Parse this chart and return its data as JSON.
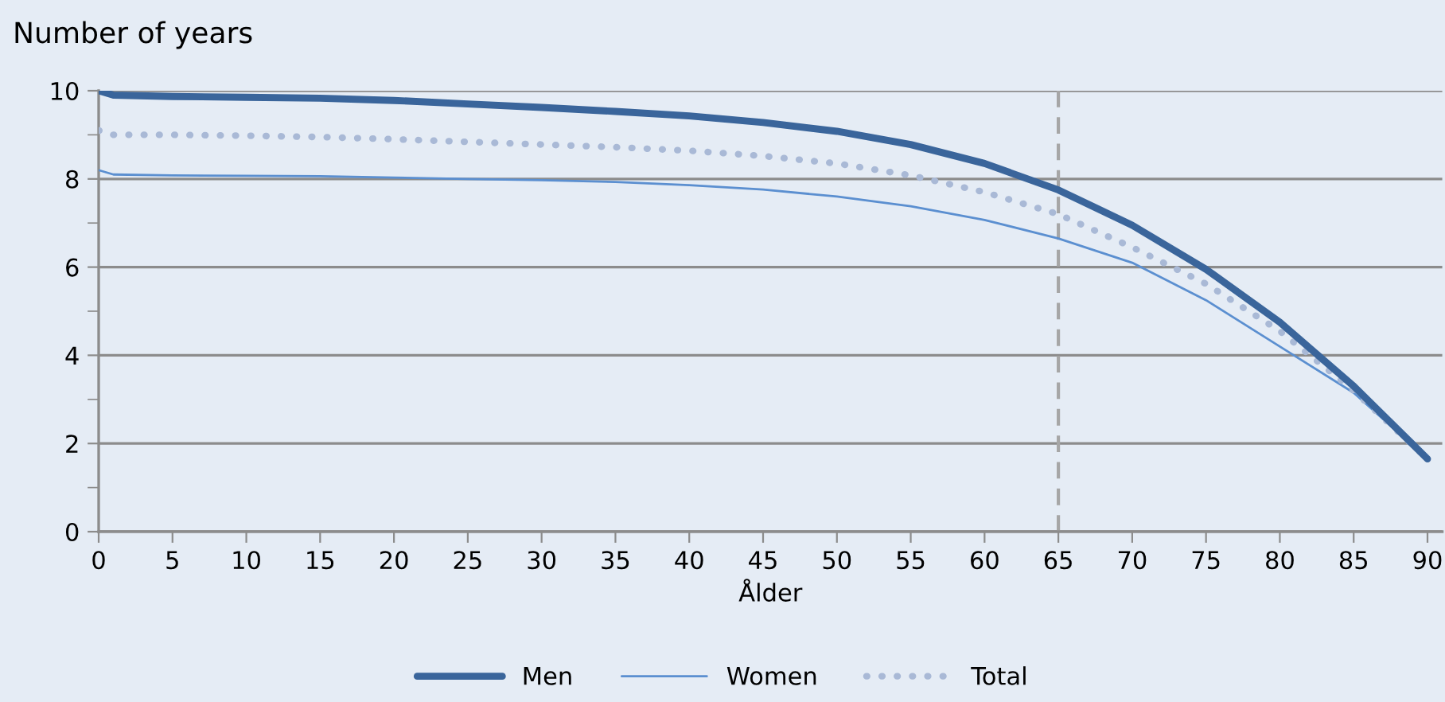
{
  "chart_data": {
    "type": "line",
    "ylabel": "Number of years",
    "xlabel": "Ålder",
    "x": [
      0,
      1,
      5,
      10,
      15,
      20,
      25,
      30,
      35,
      40,
      45,
      50,
      55,
      60,
      65,
      70,
      75,
      80,
      85,
      90
    ],
    "series": [
      {
        "name": "Men",
        "color": "#3a659b",
        "line_style": "solid",
        "values": [
          10.0,
          9.9,
          9.87,
          9.85,
          9.83,
          9.78,
          9.7,
          9.62,
          9.53,
          9.43,
          9.28,
          9.08,
          8.78,
          8.35,
          7.75,
          6.95,
          5.95,
          4.75,
          3.3,
          1.65
        ]
      },
      {
        "name": "Women",
        "color": "#5b8fd0",
        "line_style": "solid",
        "values": [
          8.2,
          8.1,
          8.08,
          8.07,
          8.06,
          8.03,
          8.0,
          7.97,
          7.93,
          7.86,
          7.76,
          7.6,
          7.38,
          7.07,
          6.65,
          6.1,
          5.25,
          4.2,
          3.15,
          1.65
        ]
      },
      {
        "name": "Total",
        "color": "#a9b9d6",
        "line_style": "dotted",
        "values": [
          9.1,
          9.0,
          9.0,
          8.98,
          8.95,
          8.9,
          8.84,
          8.78,
          8.72,
          8.64,
          8.52,
          8.35,
          8.08,
          7.7,
          7.2,
          6.45,
          5.62,
          4.55,
          3.2,
          1.65
        ]
      }
    ],
    "xlim": [
      0,
      91
    ],
    "xticks": [
      0,
      5,
      10,
      15,
      20,
      25,
      30,
      35,
      40,
      45,
      50,
      55,
      60,
      65,
      70,
      75,
      80,
      85,
      90
    ],
    "ylim": [
      0,
      10
    ],
    "yticks": [
      0,
      {
        "value": 1,
        "label": null
      },
      2,
      {
        "value": 3,
        "label": null
      },
      4,
      {
        "value": 5,
        "label": null
      },
      6,
      {
        "value": 7,
        "label": null
      },
      8,
      {
        "value": 9,
        "label": null
      },
      10
    ],
    "ref_lines": [
      {
        "axis": "x",
        "value": 65,
        "color": "#a6a6a6",
        "line_style": "dashed"
      }
    ],
    "grid": "y",
    "legend": "bottom",
    "marker": "none"
  }
}
